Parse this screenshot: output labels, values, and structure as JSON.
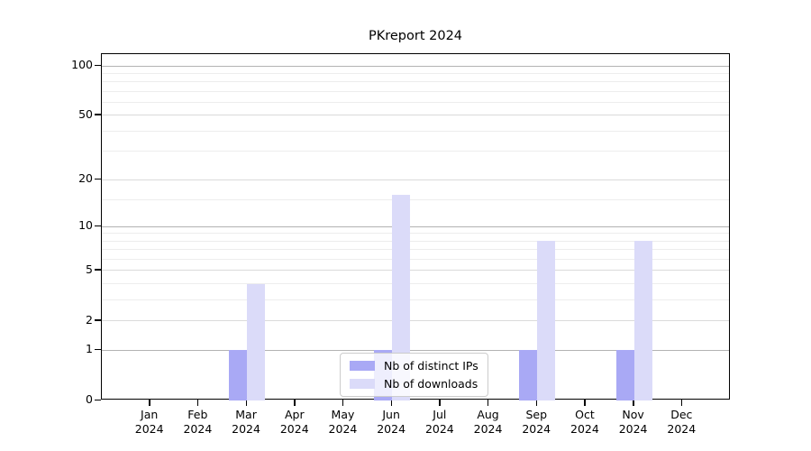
{
  "chart_data": {
    "type": "bar",
    "title": "PKreport 2024",
    "categories": [
      "Jan",
      "Feb",
      "Mar",
      "Apr",
      "May",
      "Jun",
      "Jul",
      "Aug",
      "Sep",
      "Oct",
      "Nov",
      "Dec"
    ],
    "year": "2024",
    "series": [
      {
        "name": "Nb of distinct IPs",
        "color": "#a9a9f5",
        "values": [
          0,
          0,
          1,
          0,
          0,
          1,
          0,
          0,
          1,
          0,
          1,
          0
        ]
      },
      {
        "name": "Nb of downloads",
        "color": "#dbdbf9",
        "values": [
          0,
          0,
          4,
          0,
          0,
          16,
          0,
          0,
          8,
          0,
          8,
          0
        ]
      }
    ],
    "xlabel": "",
    "ylabel": "",
    "yscale": "log1p",
    "ylim": [
      0,
      118
    ],
    "yticks": [
      0,
      1,
      2,
      5,
      10,
      20,
      50,
      100
    ],
    "gridlines": {
      "strong": [
        1,
        10,
        100
      ],
      "medium": [
        2,
        5,
        20,
        50
      ],
      "minor": [
        3,
        4,
        6,
        7,
        8,
        9,
        15,
        30,
        40,
        60,
        70,
        80,
        90
      ]
    },
    "colors": {
      "grid_strong": "#b3b3b3",
      "grid_medium": "#dadada",
      "grid_minor": "#ededed",
      "axis": "#000000"
    },
    "legend": {
      "position": "lower center"
    }
  }
}
